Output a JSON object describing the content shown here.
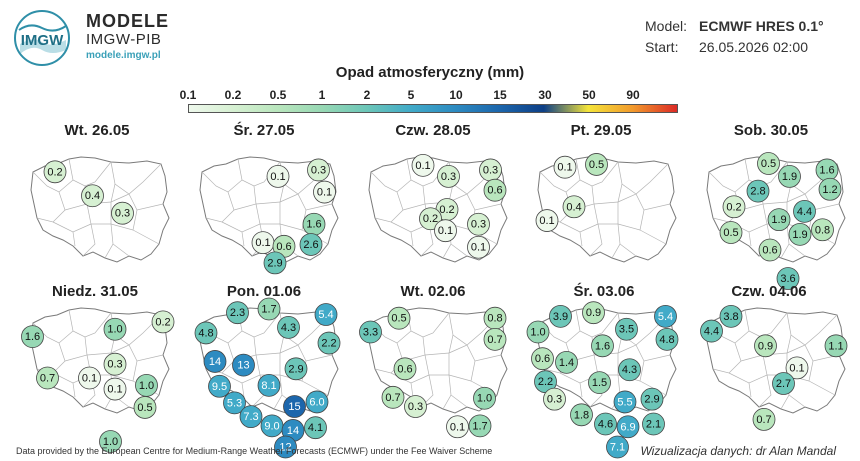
{
  "brand": {
    "name": "MODELE",
    "org": "IMGW-PIB",
    "url": "modele.imgw.pl",
    "logo_text": "IMGW"
  },
  "meta": {
    "model_label": "Model:",
    "model_value": "ECMWF HRES 0.1°",
    "start_label": "Start:",
    "start_value": "26.05.2026 02:00"
  },
  "legend": {
    "title": "Opad atmosferyczny (mm)",
    "ticks": [
      "0.1",
      "0.2",
      "0.5",
      "1",
      "2",
      "5",
      "10",
      "15",
      "30",
      "50",
      "90"
    ],
    "colors": [
      "#eef8ec",
      "#d6f0d2",
      "#b9e6bd",
      "#97d8b4",
      "#6cc6b8",
      "#41aac8",
      "#2d8bc1",
      "#1c66ac",
      "#0d3f86",
      "#f4e43a",
      "#f29a2c",
      "#dc2a26"
    ]
  },
  "days": [
    {
      "title": "Wt. 26.05",
      "points": [
        {
          "v": "0.2",
          "x": 0.2,
          "y": 0.15
        },
        {
          "v": "0.4",
          "x": 0.45,
          "y": 0.41
        },
        {
          "v": "0.3",
          "x": 0.65,
          "y": 0.6
        }
      ]
    },
    {
      "title": "Śr. 27.05",
      "points": [
        {
          "v": "0.1",
          "x": 0.56,
          "y": 0.2
        },
        {
          "v": "0.3",
          "x": 0.83,
          "y": 0.13
        },
        {
          "v": "0.1",
          "x": 0.87,
          "y": 0.37
        },
        {
          "v": "1.6",
          "x": 0.8,
          "y": 0.72
        },
        {
          "v": "0.1",
          "x": 0.46,
          "y": 0.92
        },
        {
          "v": "0.6",
          "x": 0.6,
          "y": 0.96
        },
        {
          "v": "2.6",
          "x": 0.78,
          "y": 0.94
        },
        {
          "v": "2.9",
          "x": 0.54,
          "y": 1.14
        }
      ]
    },
    {
      "title": "Czw. 28.05",
      "points": [
        {
          "v": "0.1",
          "x": 0.4,
          "y": 0.08
        },
        {
          "v": "0.3",
          "x": 0.57,
          "y": 0.2
        },
        {
          "v": "0.3",
          "x": 0.85,
          "y": 0.13
        },
        {
          "v": "0.6",
          "x": 0.88,
          "y": 0.35
        },
        {
          "v": "0.2",
          "x": 0.56,
          "y": 0.56
        },
        {
          "v": "0.2",
          "x": 0.45,
          "y": 0.66
        },
        {
          "v": "0.1",
          "x": 0.55,
          "y": 0.79
        },
        {
          "v": "0.3",
          "x": 0.77,
          "y": 0.72
        },
        {
          "v": "0.1",
          "x": 0.77,
          "y": 0.97
        }
      ]
    },
    {
      "title": "Pt. 29.05",
      "points": [
        {
          "v": "0.1",
          "x": 0.22,
          "y": 0.1
        },
        {
          "v": "0.5",
          "x": 0.43,
          "y": 0.07
        },
        {
          "v": "0.4",
          "x": 0.28,
          "y": 0.53
        },
        {
          "v": "0.1",
          "x": 0.1,
          "y": 0.68
        }
      ]
    },
    {
      "title": "Sob. 30.05",
      "points": [
        {
          "v": "0.5",
          "x": 0.45,
          "y": 0.06
        },
        {
          "v": "1.9",
          "x": 0.59,
          "y": 0.2
        },
        {
          "v": "1.6",
          "x": 0.84,
          "y": 0.13
        },
        {
          "v": "2.8",
          "x": 0.38,
          "y": 0.36
        },
        {
          "v": "1.2",
          "x": 0.86,
          "y": 0.34
        },
        {
          "v": "0.2",
          "x": 0.22,
          "y": 0.53
        },
        {
          "v": "4.4",
          "x": 0.69,
          "y": 0.58
        },
        {
          "v": "1.9",
          "x": 0.52,
          "y": 0.67
        },
        {
          "v": "0.5",
          "x": 0.2,
          "y": 0.81
        },
        {
          "v": "1.9",
          "x": 0.66,
          "y": 0.83
        },
        {
          "v": "0.8",
          "x": 0.81,
          "y": 0.78
        },
        {
          "v": "0.6",
          "x": 0.46,
          "y": 1.0
        },
        {
          "v": "3.6",
          "x": 0.58,
          "y": 1.31
        }
      ]
    },
    {
      "title": "Niedz. 31.05",
      "points": [
        {
          "v": "1.6",
          "x": 0.05,
          "y": 0.3
        },
        {
          "v": "1.0",
          "x": 0.6,
          "y": 0.22
        },
        {
          "v": "0.2",
          "x": 0.92,
          "y": 0.14
        },
        {
          "v": "0.3",
          "x": 0.6,
          "y": 0.6
        },
        {
          "v": "0.7",
          "x": 0.15,
          "y": 0.75
        },
        {
          "v": "0.1",
          "x": 0.43,
          "y": 0.75
        },
        {
          "v": "0.1",
          "x": 0.6,
          "y": 0.87
        },
        {
          "v": "1.0",
          "x": 0.81,
          "y": 0.83
        },
        {
          "v": "0.5",
          "x": 0.8,
          "y": 1.07
        },
        {
          "v": "1.0",
          "x": 0.57,
          "y": 1.44
        }
      ]
    },
    {
      "title": "Pon. 01.06",
      "points": [
        {
          "v": "2.3",
          "x": 0.29,
          "y": 0.04
        },
        {
          "v": "1.7",
          "x": 0.5,
          "y": 0.0
        },
        {
          "v": "5.4",
          "x": 0.88,
          "y": 0.06
        },
        {
          "v": "4.8",
          "x": 0.08,
          "y": 0.26
        },
        {
          "v": "4.3",
          "x": 0.63,
          "y": 0.2
        },
        {
          "v": "2.2",
          "x": 0.9,
          "y": 0.37
        },
        {
          "v": "14",
          "x": 0.14,
          "y": 0.57
        },
        {
          "v": "13",
          "x": 0.33,
          "y": 0.61
        },
        {
          "v": "2.9",
          "x": 0.68,
          "y": 0.65
        },
        {
          "v": "9.5",
          "x": 0.17,
          "y": 0.84
        },
        {
          "v": "8.1",
          "x": 0.5,
          "y": 0.83
        },
        {
          "v": "5.3",
          "x": 0.27,
          "y": 1.02
        },
        {
          "v": "15",
          "x": 0.67,
          "y": 1.06
        },
        {
          "v": "6.0",
          "x": 0.82,
          "y": 1.01
        },
        {
          "v": "7.3",
          "x": 0.38,
          "y": 1.17
        },
        {
          "v": "9.0",
          "x": 0.52,
          "y": 1.27
        },
        {
          "v": "14",
          "x": 0.66,
          "y": 1.32
        },
        {
          "v": "4.1",
          "x": 0.81,
          "y": 1.29
        },
        {
          "v": "12",
          "x": 0.61,
          "y": 1.5
        }
      ]
    },
    {
      "title": "Wt. 02.06",
      "points": [
        {
          "v": "3.3",
          "x": 0.05,
          "y": 0.25
        },
        {
          "v": "0.5",
          "x": 0.24,
          "y": 0.1
        },
        {
          "v": "0.8",
          "x": 0.88,
          "y": 0.1
        },
        {
          "v": "0.7",
          "x": 0.88,
          "y": 0.33
        },
        {
          "v": "0.6",
          "x": 0.28,
          "y": 0.65
        },
        {
          "v": "0.7",
          "x": 0.2,
          "y": 0.96
        },
        {
          "v": "0.3",
          "x": 0.35,
          "y": 1.06
        },
        {
          "v": "1.0",
          "x": 0.81,
          "y": 0.97
        },
        {
          "v": "0.1",
          "x": 0.63,
          "y": 1.28
        },
        {
          "v": "1.7",
          "x": 0.78,
          "y": 1.27
        }
      ]
    },
    {
      "title": "Śr. 03.06",
      "points": [
        {
          "v": "3.9",
          "x": 0.19,
          "y": 0.08
        },
        {
          "v": "0.9",
          "x": 0.41,
          "y": 0.04
        },
        {
          "v": "5.4",
          "x": 0.89,
          "y": 0.08
        },
        {
          "v": "1.0",
          "x": 0.04,
          "y": 0.25
        },
        {
          "v": "3.5",
          "x": 0.63,
          "y": 0.22
        },
        {
          "v": "4.8",
          "x": 0.9,
          "y": 0.33
        },
        {
          "v": "1.6",
          "x": 0.47,
          "y": 0.4
        },
        {
          "v": "0.6",
          "x": 0.07,
          "y": 0.54
        },
        {
          "v": "1.4",
          "x": 0.23,
          "y": 0.58
        },
        {
          "v": "4.3",
          "x": 0.65,
          "y": 0.66
        },
        {
          "v": "2.2",
          "x": 0.09,
          "y": 0.79
        },
        {
          "v": "1.5",
          "x": 0.45,
          "y": 0.8
        },
        {
          "v": "0.3",
          "x": 0.15,
          "y": 0.98
        },
        {
          "v": "5.5",
          "x": 0.62,
          "y": 1.01
        },
        {
          "v": "2.9",
          "x": 0.8,
          "y": 0.98
        },
        {
          "v": "1.8",
          "x": 0.33,
          "y": 1.15
        },
        {
          "v": "4.6",
          "x": 0.49,
          "y": 1.25
        },
        {
          "v": "6.9",
          "x": 0.64,
          "y": 1.28
        },
        {
          "v": "2.1",
          "x": 0.81,
          "y": 1.25
        },
        {
          "v": "7.1",
          "x": 0.57,
          "y": 1.5
        }
      ]
    },
    {
      "title": "Czw. 04.06",
      "points": [
        {
          "v": "4.4",
          "x": 0.07,
          "y": 0.24
        },
        {
          "v": "3.8",
          "x": 0.2,
          "y": 0.08
        },
        {
          "v": "0.9",
          "x": 0.43,
          "y": 0.4
        },
        {
          "v": "1.1",
          "x": 0.9,
          "y": 0.4
        },
        {
          "v": "0.1",
          "x": 0.64,
          "y": 0.64
        },
        {
          "v": "2.7",
          "x": 0.55,
          "y": 0.81
        },
        {
          "v": "0.7",
          "x": 0.42,
          "y": 1.2
        }
      ]
    }
  ],
  "footer": {
    "left": "Data provided by the European Centre for Medium-Range Weather Forecasts (ECMWF) under the Fee Waiver Scheme",
    "right": "Wizualizacja danych: dr Alan Mandal"
  }
}
